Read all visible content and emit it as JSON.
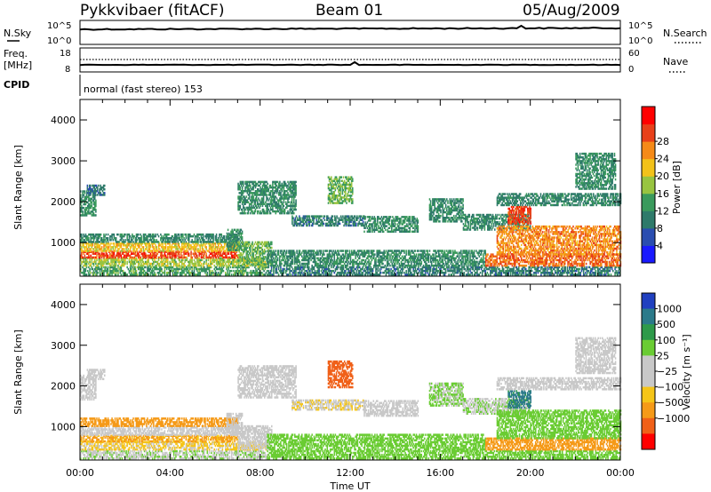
{
  "header": {
    "station": "Pykkvibaer (fitACF)",
    "beam": "Beam 01",
    "date": "05/Aug/2009"
  },
  "strip_panels": {
    "nsky": {
      "left_label": "N.Sky",
      "right_label": "N.Search",
      "left_ticks": [
        "10^5",
        "10^0"
      ],
      "right_ticks": [
        "10^5",
        "10^0"
      ]
    },
    "freq": {
      "left_label_1": "Freq.",
      "left_label_2": "[MHz]",
      "right_label": "Nave",
      "left_ticks": [
        "18",
        "8"
      ],
      "right_ticks": [
        "60",
        "0"
      ]
    },
    "cpid": {
      "label": "CPID",
      "text": "normal (fast stereo) 153"
    }
  },
  "chart_data": [
    {
      "type": "heatmap",
      "name": "power",
      "ylabel": "Slant Range [km]",
      "xlabel": "",
      "xlim_hours": [
        0,
        24
      ],
      "ylim": [
        180,
        4500
      ],
      "yticks": [
        1000,
        2000,
        3000,
        4000
      ],
      "colorbar": {
        "label": "Power [dB]",
        "ticks": [
          4,
          8,
          12,
          16,
          20,
          24,
          28
        ],
        "colors": [
          "#1a1aff",
          "#2a4db0",
          "#2e7a6a",
          "#3a9a5c",
          "#98c440",
          "#f2c21a",
          "#f58a18",
          "#e8401a",
          "#ff0000"
        ]
      }
    },
    {
      "type": "heatmap",
      "name": "velocity",
      "ylabel": "Slant Range [km]",
      "xlabel": "Time UT",
      "xlim_hours": [
        0,
        24
      ],
      "ylim": [
        180,
        4500
      ],
      "yticks": [
        1000,
        2000,
        3000,
        4000
      ],
      "xticks": [
        "00:00",
        "04:00",
        "08:00",
        "12:00",
        "16:00",
        "20:00",
        "00:00"
      ],
      "colorbar": {
        "label": "Velocity [m s⁻¹]",
        "ticks": [
          "1000",
          "500",
          "100",
          "25",
          "−25",
          "−100",
          "−500",
          "−1000"
        ],
        "colors": [
          "#2040c0",
          "#2b7a8a",
          "#2e9a4a",
          "#6acc33",
          "#c8c8c8",
          "#c8c8c8",
          "#f5c518",
          "#f59a18",
          "#f06018",
          "#ff0000"
        ]
      }
    }
  ],
  "bands": [
    {
      "t0": 0.0,
      "t1": 8.3,
      "r0": 200,
      "r1": 420,
      "power": 10,
      "vel": 20
    },
    {
      "t0": 0.0,
      "t1": 8.3,
      "r0": 420,
      "r1": 620,
      "power": 14,
      "vel": -30
    },
    {
      "t0": 0.0,
      "t1": 7.0,
      "r0": 620,
      "r1": 780,
      "power": 26,
      "vel": -110
    },
    {
      "t0": 0.0,
      "t1": 7.0,
      "r0": 780,
      "r1": 1000,
      "power": 18,
      "vel": 10
    },
    {
      "t0": 0.0,
      "t1": 7.0,
      "r0": 1000,
      "r1": 1200,
      "power": 7,
      "vel": -150
    },
    {
      "t0": 0.0,
      "t1": 0.7,
      "r0": 1650,
      "r1": 2250,
      "power": 9,
      "vel": 10
    },
    {
      "t0": 0.3,
      "t1": 1.1,
      "r0": 2150,
      "r1": 2400,
      "power": 5,
      "vel": 5
    },
    {
      "t0": 6.5,
      "t1": 7.2,
      "r0": 800,
      "r1": 1300,
      "power": 8,
      "vel": 0
    },
    {
      "t0": 7.0,
      "t1": 8.5,
      "r0": 450,
      "r1": 1000,
      "power": 12,
      "vel": 0
    },
    {
      "t0": 7.0,
      "t1": 9.6,
      "r0": 1700,
      "r1": 2500,
      "power": 8,
      "vel": 5
    },
    {
      "t0": 9.4,
      "t1": 12.6,
      "r0": 1400,
      "r1": 1650,
      "power": 6,
      "vel": -20
    },
    {
      "t0": 11.0,
      "t1": 12.1,
      "r0": 1950,
      "r1": 2600,
      "power": 12,
      "vel": -700
    },
    {
      "t0": 12.6,
      "t1": 15.0,
      "r0": 1250,
      "r1": 1650,
      "power": 8,
      "vel": 5
    },
    {
      "t0": 15.5,
      "t1": 17.0,
      "r0": 1500,
      "r1": 2050,
      "power": 7,
      "vel": 30
    },
    {
      "t0": 17.0,
      "t1": 20.0,
      "r0": 1300,
      "r1": 1700,
      "power": 7,
      "vel": 20
    },
    {
      "t0": 8.3,
      "t1": 24.0,
      "r0": 200,
      "r1": 420,
      "power": 6,
      "vel": 60
    },
    {
      "t0": 8.3,
      "t1": 18.0,
      "r0": 420,
      "r1": 800,
      "power": 8,
      "vel": 40
    },
    {
      "t0": 18.0,
      "t1": 24.0,
      "r0": 420,
      "r1": 700,
      "power": 24,
      "vel": -300
    },
    {
      "t0": 18.5,
      "t1": 24.0,
      "r0": 700,
      "r1": 1400,
      "power": 22,
      "vel": 80
    },
    {
      "t0": 19.0,
      "t1": 20.0,
      "r0": 1450,
      "r1": 1900,
      "power": 26,
      "vel": 600
    },
    {
      "t0": 18.5,
      "t1": 24.0,
      "r0": 1900,
      "r1": 2200,
      "power": 7,
      "vel": 5
    },
    {
      "t0": 22.0,
      "t1": 23.8,
      "r0": 2300,
      "r1": 3200,
      "power": 8,
      "vel": 5
    }
  ]
}
